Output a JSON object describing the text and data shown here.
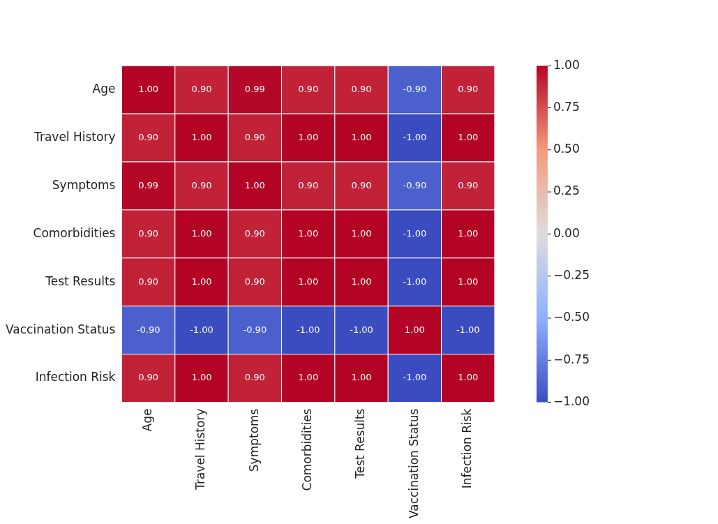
{
  "chart_data": {
    "type": "heatmap",
    "categories": [
      "Age",
      "Travel History",
      "Symptoms",
      "Comorbidities",
      "Test Results",
      "Vaccination Status",
      "Infection Risk"
    ],
    "y_categories": [
      "Age",
      "Travel History",
      "Symptoms",
      "Comorbidities",
      "Test Results",
      "Vaccination Status",
      "Infection Risk"
    ],
    "cells": [
      [
        1.0,
        0.9,
        0.99,
        0.9,
        0.9,
        -0.9,
        0.9
      ],
      [
        0.9,
        1.0,
        0.9,
        1.0,
        1.0,
        -1.0,
        1.0
      ],
      [
        0.99,
        0.9,
        1.0,
        0.9,
        0.9,
        -0.9,
        0.9
      ],
      [
        0.9,
        1.0,
        0.9,
        1.0,
        1.0,
        -1.0,
        1.0
      ],
      [
        0.9,
        1.0,
        0.9,
        1.0,
        1.0,
        -1.0,
        1.0
      ],
      [
        -0.9,
        -1.0,
        -0.9,
        -1.0,
        -1.0,
        1.0,
        -1.0
      ],
      [
        0.9,
        1.0,
        0.9,
        1.0,
        1.0,
        -1.0,
        1.0
      ]
    ],
    "cell_labels": [
      [
        "1.00",
        "0.90",
        "0.99",
        "0.90",
        "0.90",
        "-0.90",
        "0.90"
      ],
      [
        "0.90",
        "1.00",
        "0.90",
        "1.00",
        "1.00",
        "-1.00",
        "1.00"
      ],
      [
        "0.99",
        "0.90",
        "1.00",
        "0.90",
        "0.90",
        "-0.90",
        "0.90"
      ],
      [
        "0.90",
        "1.00",
        "0.90",
        "1.00",
        "1.00",
        "-1.00",
        "1.00"
      ],
      [
        "0.90",
        "1.00",
        "0.90",
        "1.00",
        "1.00",
        "-1.00",
        "1.00"
      ],
      [
        "-0.90",
        "-1.00",
        "-0.90",
        "-1.00",
        "-1.00",
        "1.00",
        "-1.00"
      ],
      [
        "0.90",
        "1.00",
        "0.90",
        "1.00",
        "1.00",
        "-1.00",
        "1.00"
      ]
    ],
    "clim": [
      -1.0,
      1.0
    ],
    "cticks": [
      {
        "value": -1.0,
        "label": "−1.00"
      },
      {
        "value": -0.75,
        "label": "−0.75"
      },
      {
        "value": -0.5,
        "label": "−0.50"
      },
      {
        "value": -0.25,
        "label": "−0.25"
      },
      {
        "value": 0.0,
        "label": "0.00"
      },
      {
        "value": 0.25,
        "label": "0.25"
      },
      {
        "value": 0.5,
        "label": "0.50"
      },
      {
        "value": 0.75,
        "label": "0.75"
      },
      {
        "value": 1.0,
        "label": "1.00"
      }
    ]
  }
}
